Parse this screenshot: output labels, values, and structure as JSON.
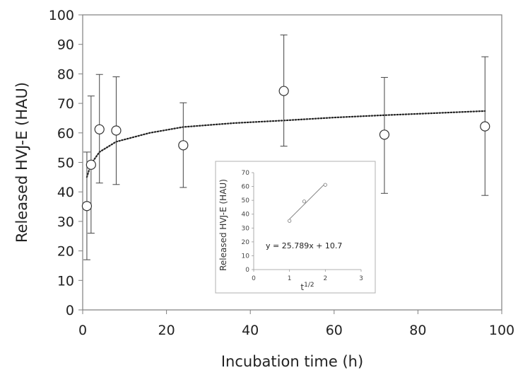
{
  "chart_data": [
    {
      "type": "scatter",
      "xlabel": "Incubation time (h)",
      "ylabel": "Released HVJ-E (HAU)",
      "xlim": [
        0,
        100
      ],
      "ylim": [
        0,
        100
      ],
      "xticks": [
        0,
        20,
        40,
        60,
        80,
        100
      ],
      "yticks": [
        0,
        10,
        20,
        30,
        40,
        50,
        60,
        70,
        80,
        90,
        100
      ],
      "grid": false,
      "series": [
        {
          "points": [
            {
              "x": 1,
              "y": 35.2,
              "ylow": 17,
              "yhigh": 53.5
            },
            {
              "x": 2,
              "y": 49.2,
              "ylow": 26,
              "yhigh": 72.5
            },
            {
              "x": 4,
              "y": 61.2,
              "ylow": 43,
              "yhigh": 79.8
            },
            {
              "x": 8,
              "y": 60.8,
              "ylow": 42.5,
              "yhigh": 79
            },
            {
              "x": 24,
              "y": 55.8,
              "ylow": 41.5,
              "yhigh": 70.2
            },
            {
              "x": 48,
              "y": 74.2,
              "ylow": 55.5,
              "yhigh": 93.2
            },
            {
              "x": 72,
              "y": 59.4,
              "ylow": 39.5,
              "yhigh": 78.8
            },
            {
              "x": 96,
              "y": 62.2,
              "ylow": 38.8,
              "yhigh": 85.8
            }
          ]
        }
      ],
      "trendline": {
        "style": "dotted",
        "points": [
          [
            1,
            45
          ],
          [
            2,
            49.5
          ],
          [
            4,
            53.5
          ],
          [
            8,
            57
          ],
          [
            16,
            60
          ],
          [
            24,
            62
          ],
          [
            36,
            63.3
          ],
          [
            48,
            64.2
          ],
          [
            60,
            65.2
          ],
          [
            72,
            66
          ],
          [
            84,
            66.7
          ],
          [
            96,
            67.4
          ]
        ]
      }
    },
    {
      "type": "scatter",
      "role": "inset",
      "xlabel": "t1/2",
      "xlabel_base": "t",
      "xlabel_sup": "1/2",
      "ylabel": "Released HVJ-E (HAU)",
      "xlim": [
        0,
        3
      ],
      "ylim": [
        0,
        70
      ],
      "xticks": [
        0,
        1,
        2,
        3
      ],
      "yticks": [
        0,
        10,
        20,
        30,
        40,
        50,
        60,
        70
      ],
      "grid": false,
      "series": [
        {
          "points": [
            [
              1,
              35.2
            ],
            [
              1.41,
              49.2
            ],
            [
              2,
              61.2
            ]
          ]
        }
      ],
      "fit": {
        "slope": 25.789,
        "intercept": 10.7,
        "x_range": [
          1,
          2
        ]
      },
      "annotation": "y = 25.789x + 10.7"
    }
  ]
}
